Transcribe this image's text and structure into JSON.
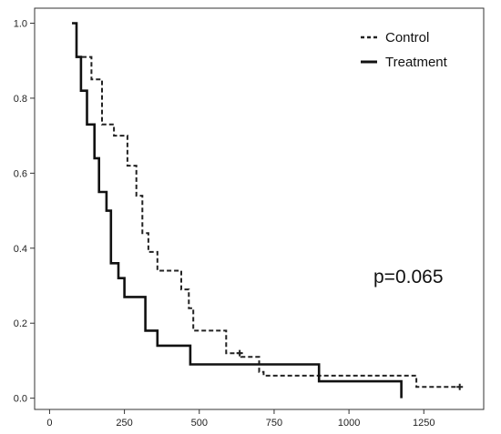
{
  "chart_data": {
    "type": "line",
    "subtype": "kaplan-meier-step",
    "title": "",
    "xlabel": "",
    "ylabel": "",
    "xlim": [
      -50,
      1450
    ],
    "ylim": [
      -0.03,
      1.04
    ],
    "x_ticks": [
      0,
      250,
      500,
      750,
      1000,
      1250
    ],
    "x_tick_labels": [
      "0",
      "250",
      "500",
      "750",
      "1000",
      "1250"
    ],
    "y_ticks": [
      0.0,
      0.2,
      0.4,
      0.6,
      0.8,
      1.0
    ],
    "y_tick_labels": [
      "0.0",
      "0.2",
      "0.4",
      "0.6",
      "0.8",
      "1.0"
    ],
    "grid": false,
    "legend_position": "top-right",
    "annotation": "p=0.065",
    "series": [
      {
        "name": "Control",
        "style": "dashed",
        "color": "#222222",
        "x": [
          75,
          90,
          90,
          140,
          140,
          175,
          175,
          215,
          215,
          260,
          260,
          290,
          290,
          310,
          310,
          330,
          330,
          360,
          360,
          440,
          440,
          465,
          465,
          480,
          480,
          590,
          590,
          640,
          640,
          700,
          700,
          715,
          715,
          890,
          890,
          1225,
          1225,
          1370
        ],
        "y": [
          1.0,
          1.0,
          0.91,
          0.91,
          0.85,
          0.85,
          0.73,
          0.73,
          0.7,
          0.7,
          0.62,
          0.62,
          0.54,
          0.54,
          0.44,
          0.44,
          0.39,
          0.39,
          0.34,
          0.34,
          0.29,
          0.29,
          0.24,
          0.24,
          0.18,
          0.18,
          0.12,
          0.12,
          0.11,
          0.11,
          0.07,
          0.07,
          0.06,
          0.06,
          0.06,
          0.06,
          0.03,
          0.03
        ],
        "censored": [
          {
            "x": 635,
            "y": 0.12
          },
          {
            "x": 1370,
            "y": 0.03
          }
        ]
      },
      {
        "name": "Treatment",
        "style": "solid",
        "color": "#111111",
        "x": [
          75,
          90,
          90,
          105,
          105,
          125,
          125,
          150,
          150,
          165,
          165,
          190,
          190,
          205,
          205,
          230,
          230,
          250,
          250,
          320,
          320,
          345,
          345,
          360,
          360,
          470,
          470,
          900,
          900,
          1175,
          1175
        ],
        "y": [
          1.0,
          1.0,
          0.91,
          0.91,
          0.82,
          0.82,
          0.73,
          0.73,
          0.64,
          0.64,
          0.55,
          0.55,
          0.5,
          0.5,
          0.36,
          0.36,
          0.32,
          0.32,
          0.27,
          0.27,
          0.18,
          0.18,
          0.18,
          0.18,
          0.14,
          0.14,
          0.09,
          0.09,
          0.045,
          0.045,
          0.0
        ]
      }
    ]
  }
}
